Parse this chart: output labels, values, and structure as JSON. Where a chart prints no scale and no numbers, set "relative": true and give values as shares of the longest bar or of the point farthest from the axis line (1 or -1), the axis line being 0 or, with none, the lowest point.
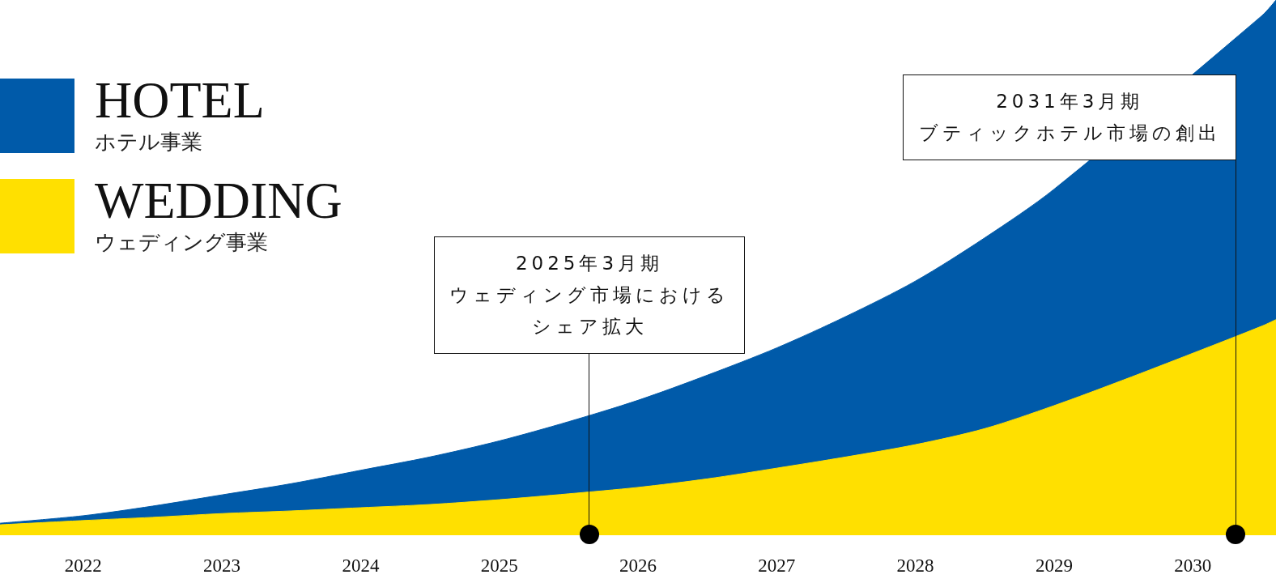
{
  "chart_data": {
    "type": "area",
    "relative": true,
    "stacked": true,
    "legend": "top left",
    "x": [
      2021.4,
      2022,
      2022.5,
      2023,
      2023.5,
      2024,
      2024.5,
      2025,
      2025.5,
      2026,
      2026.5,
      2027,
      2027.5,
      2028,
      2028.5,
      2029,
      2029.5,
      2030,
      2030.5,
      2030.6
    ],
    "xlim": [
      2021.4,
      2030.6
    ],
    "xticks": [
      2022,
      2023,
      2024,
      2025,
      2026,
      2027,
      2028,
      2029,
      2030
    ],
    "series": [
      {
        "name": "WEDDING\nウェディング事業",
        "color": "#ffe000",
        "values": [
          0.018,
          0.026,
          0.032,
          0.039,
          0.044,
          0.05,
          0.056,
          0.065,
          0.076,
          0.088,
          0.104,
          0.124,
          0.145,
          0.168,
          0.198,
          0.241,
          0.289,
          0.339,
          0.39,
          0.402
        ]
      },
      {
        "name": "HOTEL\nホテル事業",
        "color": "#005aa9",
        "values": [
          0.003,
          0.009,
          0.021,
          0.035,
          0.051,
          0.07,
          0.089,
          0.11,
          0.135,
          0.163,
          0.194,
          0.225,
          0.263,
          0.306,
          0.357,
          0.405,
          null,
          null,
          0.581,
          0.598
        ]
      }
    ],
    "annotations": [
      "2025年3月期",
      {
        "text": "ウェディング市場におけるシェア拡大",
        "x": 2025.65,
        "y": 0
      },
      "2031年3月期",
      {
        "text": "ブティックホテル市場の創出",
        "x": 2030.31,
        "y": 0
      }
    ]
  }
}
